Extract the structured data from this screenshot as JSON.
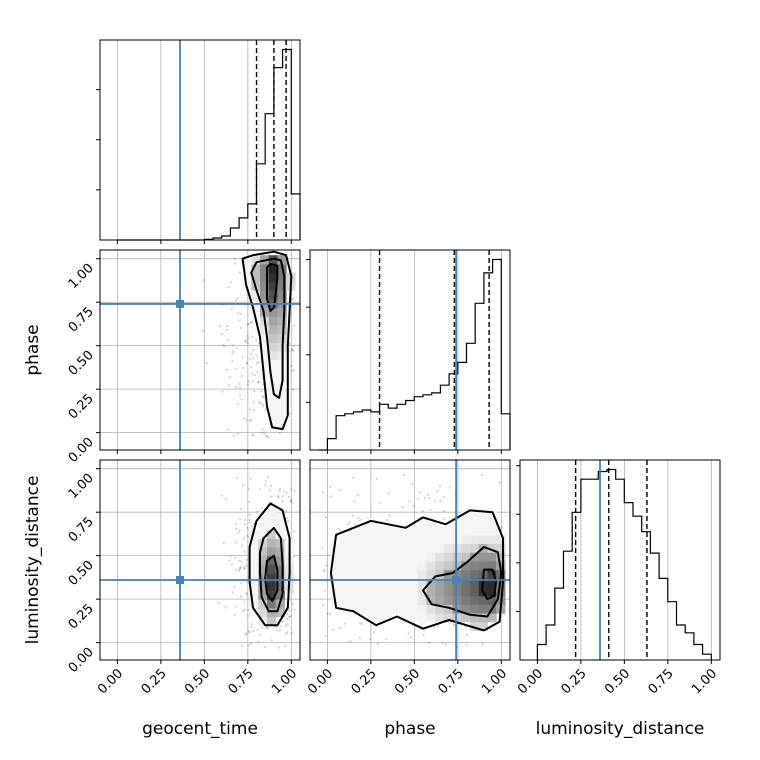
{
  "chart_data": {
    "type": "corner",
    "parameters": [
      "geocent_time",
      "phase",
      "luminosity_distance"
    ],
    "truths": {
      "geocent_time": 0.36,
      "phase": 0.74,
      "luminosity_distance": 0.36
    },
    "truth_color": "#4682b4",
    "axis_range": [
      -0.1,
      1.05
    ],
    "ticks": [
      0.0,
      0.25,
      0.5,
      0.75,
      1.0
    ],
    "tick_labels": [
      "0.00",
      "0.25",
      "0.50",
      "0.75",
      "1.00"
    ],
    "grid": true,
    "histograms": [
      {
        "parameter": "geocent_time",
        "bin_edges": [
          0.0,
          0.05,
          0.1,
          0.15,
          0.2,
          0.25,
          0.3,
          0.35,
          0.4,
          0.45,
          0.5,
          0.55,
          0.6,
          0.65,
          0.7,
          0.75,
          0.8,
          0.85,
          0.9,
          0.95,
          1.0,
          1.05
        ],
        "counts": [
          0,
          0,
          0,
          0,
          0,
          0,
          0,
          0,
          0,
          0,
          0.3,
          1,
          2,
          6,
          11,
          18,
          38,
          63,
          86,
          95,
          23
        ],
        "quantiles": [
          0.8,
          0.9,
          0.97
        ]
      },
      {
        "parameter": "phase",
        "bin_edges": [
          -0.05,
          0.0,
          0.05,
          0.1,
          0.15,
          0.2,
          0.25,
          0.3,
          0.35,
          0.4,
          0.45,
          0.5,
          0.55,
          0.6,
          0.65,
          0.7,
          0.75,
          0.8,
          0.85,
          0.9,
          0.95,
          1.0,
          1.05
        ],
        "counts": [
          0,
          6,
          18,
          19,
          20,
          21,
          20,
          24,
          22,
          24,
          26,
          28,
          29,
          30,
          34,
          40,
          46,
          56,
          77,
          93,
          100,
          19
        ],
        "quantiles": [
          0.3,
          0.73,
          0.93
        ]
      },
      {
        "parameter": "luminosity_distance",
        "bin_edges": [
          0.0,
          0.05,
          0.1,
          0.15,
          0.2,
          0.25,
          0.3,
          0.35,
          0.4,
          0.45,
          0.5,
          0.55,
          0.6,
          0.65,
          0.7,
          0.75,
          0.8,
          0.85,
          0.9,
          0.95,
          1.0
        ],
        "counts": [
          8,
          18,
          37,
          56,
          76,
          93,
          93,
          97,
          98,
          93,
          81,
          74,
          66,
          55,
          42,
          30,
          18,
          14,
          8,
          3
        ],
        "quantiles": [
          0.22,
          0.41,
          0.63
        ]
      }
    ],
    "panels_2d": [
      {
        "x": "geocent_time",
        "y": "phase",
        "density_peak": [
          0.9,
          0.95
        ],
        "contours": [
          [
            [
              0.88,
              0.97
            ],
            [
              0.92,
              0.96
            ],
            [
              0.92,
              0.89
            ],
            [
              0.91,
              0.8
            ],
            [
              0.9,
              0.72
            ],
            [
              0.88,
              0.7
            ],
            [
              0.86,
              0.77
            ],
            [
              0.86,
              0.88
            ],
            [
              0.86,
              0.95
            ]
          ],
          [
            [
              0.8,
              0.98
            ],
            [
              0.9,
              1.0
            ],
            [
              0.94,
              0.99
            ],
            [
              0.96,
              0.9
            ],
            [
              0.96,
              0.7
            ],
            [
              0.95,
              0.5
            ],
            [
              0.95,
              0.3
            ],
            [
              0.93,
              0.2
            ],
            [
              0.9,
              0.22
            ],
            [
              0.88,
              0.35
            ],
            [
              0.86,
              0.55
            ],
            [
              0.84,
              0.7
            ],
            [
              0.8,
              0.82
            ],
            [
              0.77,
              0.92
            ]
          ],
          [
            [
              0.72,
              1.0
            ],
            [
              0.78,
              1.02
            ],
            [
              0.9,
              1.04
            ],
            [
              0.97,
              1.02
            ],
            [
              1.0,
              0.9
            ],
            [
              0.99,
              0.7
            ],
            [
              0.98,
              0.5
            ],
            [
              0.98,
              0.3
            ],
            [
              0.98,
              0.1
            ],
            [
              0.95,
              0.02
            ],
            [
              0.89,
              0.03
            ],
            [
              0.86,
              0.15
            ],
            [
              0.84,
              0.35
            ],
            [
              0.82,
              0.55
            ],
            [
              0.78,
              0.72
            ],
            [
              0.74,
              0.85
            ]
          ]
        ]
      },
      {
        "x": "geocent_time",
        "y": "luminosity_distance",
        "density_peak": [
          0.9,
          0.33
        ],
        "contours": [
          [
            [
              0.86,
              0.47
            ],
            [
              0.9,
              0.5
            ],
            [
              0.92,
              0.42
            ],
            [
              0.92,
              0.3
            ],
            [
              0.89,
              0.24
            ],
            [
              0.86,
              0.28
            ],
            [
              0.85,
              0.37
            ]
          ],
          [
            [
              0.84,
              0.6
            ],
            [
              0.9,
              0.66
            ],
            [
              0.94,
              0.6
            ],
            [
              0.95,
              0.45
            ],
            [
              0.95,
              0.28
            ],
            [
              0.92,
              0.18
            ],
            [
              0.87,
              0.18
            ],
            [
              0.83,
              0.26
            ],
            [
              0.82,
              0.4
            ],
            [
              0.82,
              0.52
            ]
          ],
          [
            [
              0.8,
              0.7
            ],
            [
              0.88,
              0.8
            ],
            [
              0.95,
              0.76
            ],
            [
              0.99,
              0.6
            ],
            [
              0.99,
              0.4
            ],
            [
              0.98,
              0.2
            ],
            [
              0.92,
              0.1
            ],
            [
              0.85,
              0.1
            ],
            [
              0.78,
              0.2
            ],
            [
              0.76,
              0.35
            ],
            [
              0.76,
              0.55
            ]
          ]
        ]
      },
      {
        "x": "phase",
        "y": "luminosity_distance",
        "density_peak": [
          0.93,
          0.32
        ],
        "contours": [
          [
            [
              0.9,
              0.42
            ],
            [
              0.95,
              0.42
            ],
            [
              0.97,
              0.35
            ],
            [
              0.96,
              0.27
            ],
            [
              0.92,
              0.25
            ],
            [
              0.89,
              0.3
            ]
          ],
          [
            [
              0.8,
              0.46
            ],
            [
              0.9,
              0.55
            ],
            [
              0.98,
              0.52
            ],
            [
              1.0,
              0.4
            ],
            [
              0.98,
              0.25
            ],
            [
              0.92,
              0.15
            ],
            [
              0.82,
              0.16
            ],
            [
              0.7,
              0.2
            ],
            [
              0.6,
              0.22
            ],
            [
              0.55,
              0.3
            ],
            [
              0.62,
              0.38
            ],
            [
              0.72,
              0.4
            ]
          ],
          [
            [
              0.05,
              0.62
            ],
            [
              0.25,
              0.7
            ],
            [
              0.45,
              0.66
            ],
            [
              0.55,
              0.72
            ],
            [
              0.68,
              0.68
            ],
            [
              0.82,
              0.76
            ],
            [
              0.95,
              0.75
            ],
            [
              1.01,
              0.6
            ],
            [
              1.01,
              0.35
            ],
            [
              0.99,
              0.12
            ],
            [
              0.9,
              0.07
            ],
            [
              0.7,
              0.13
            ],
            [
              0.55,
              0.08
            ],
            [
              0.4,
              0.15
            ],
            [
              0.28,
              0.1
            ],
            [
              0.15,
              0.18
            ],
            [
              0.05,
              0.2
            ],
            [
              0.02,
              0.4
            ]
          ]
        ]
      }
    ]
  }
}
